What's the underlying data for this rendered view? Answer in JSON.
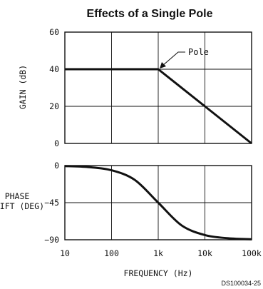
{
  "chart_data": [
    {
      "type": "line",
      "title": "Effects of a Single Pole",
      "ylabel": "GAIN (dB)",
      "xscale": "log",
      "xlim": [
        10,
        100000
      ],
      "ylim": [
        0,
        60
      ],
      "yticks": [
        0,
        20,
        40,
        60
      ],
      "grid": true,
      "series": [
        {
          "x": [
            10,
            100,
            1000,
            10000,
            100000
          ],
          "y": [
            40,
            40,
            40,
            20,
            0
          ]
        }
      ],
      "annotations": [
        {
          "text": "Pole",
          "x": 1000,
          "y": 40
        }
      ]
    },
    {
      "type": "line",
      "ylabel_lines": [
        "PHASE",
        "SHIFT (DEG)"
      ],
      "xlabel": "FREQUENCY (Hz)",
      "xscale": "log",
      "xlim": [
        10,
        100000
      ],
      "ylim": [
        -90,
        0
      ],
      "yticks": [
        0,
        -45,
        -90
      ],
      "xtick_labels": [
        "10",
        "100",
        "1k",
        "10k",
        "100k"
      ],
      "grid": true,
      "series": [
        {
          "x": [
            10,
            31.6,
            100,
            316,
            1000,
            3162,
            10000,
            31623,
            100000
          ],
          "y": [
            -0.6,
            -1.8,
            -5.7,
            -17.5,
            -45,
            -72.5,
            -84.3,
            -88.2,
            -89.4
          ]
        }
      ]
    }
  ],
  "figure_code": "DS100034-25"
}
